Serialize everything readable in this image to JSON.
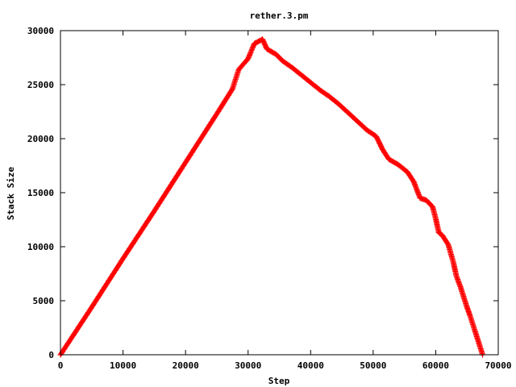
{
  "chart_data": {
    "type": "line",
    "title": "rether.3.pm",
    "xlabel": "Step",
    "ylabel": "Stack Size",
    "xlim": [
      0,
      70000
    ],
    "ylim": [
      0,
      30000
    ],
    "xticks": [
      "0",
      "10000",
      "20000",
      "30000",
      "40000",
      "50000",
      "60000",
      "70000"
    ],
    "yticks": [
      "0",
      "5000",
      "10000",
      "15000",
      "20000",
      "25000",
      "30000"
    ],
    "grid": false,
    "legend": "none",
    "marker": "plus",
    "series": [
      {
        "color": "#ff0000",
        "x": [
          0,
          5000,
          10000,
          15000,
          20000,
          25000,
          27500,
          28500,
          30000,
          31000,
          32300,
          33000,
          34500,
          35500,
          37000,
          38500,
          40000,
          41500,
          43000,
          44500,
          46000,
          47500,
          49000,
          50500,
          51500,
          52500,
          54000,
          55500,
          56500,
          57500,
          58500,
          59500,
          60000,
          60500,
          61000,
          62000,
          62800,
          63300,
          64000,
          64500,
          65000,
          65500,
          66000,
          66500,
          67000,
          67500
        ],
        "y": [
          0,
          4400,
          8900,
          13300,
          17800,
          22300,
          24600,
          26400,
          27400,
          28800,
          29200,
          28300,
          27800,
          27200,
          26600,
          25900,
          25200,
          24500,
          23900,
          23200,
          22400,
          21600,
          20800,
          20200,
          19000,
          18100,
          17600,
          16900,
          16000,
          14500,
          14300,
          13700,
          12600,
          11300,
          11100,
          10200,
          8600,
          7300,
          6200,
          5300,
          4400,
          3600,
          2700,
          1800,
          900,
          0
        ]
      }
    ]
  }
}
